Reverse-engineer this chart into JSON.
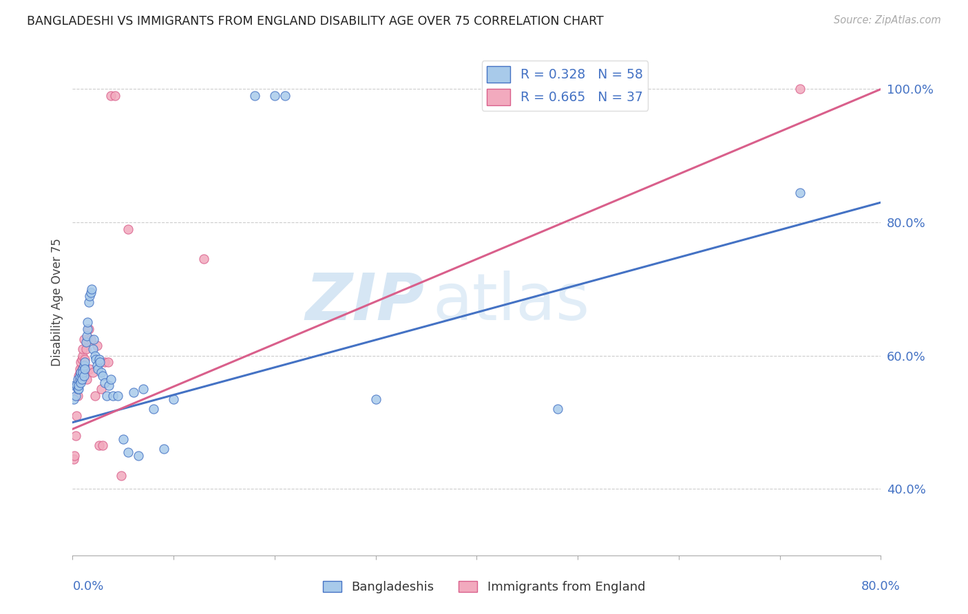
{
  "title": "BANGLADESHI VS IMMIGRANTS FROM ENGLAND DISABILITY AGE OVER 75 CORRELATION CHART",
  "source": "Source: ZipAtlas.com",
  "ylabel": "Disability Age Over 75",
  "ytick_labels": [
    "40.0%",
    "60.0%",
    "80.0%",
    "100.0%"
  ],
  "legend_blue_r": "R = 0.328",
  "legend_blue_n": "N = 58",
  "legend_pink_r": "R = 0.665",
  "legend_pink_n": "N = 37",
  "color_blue": "#A8CAEA",
  "color_pink": "#F2AABE",
  "color_line_blue": "#4472C4",
  "color_line_pink": "#D95F8B",
  "color_text_blue": "#4472C4",
  "watermark_zip": "ZIP",
  "watermark_atlas": "atlas",
  "blue_line_x0": 0.0,
  "blue_line_y0": 0.5,
  "blue_line_x1": 0.8,
  "blue_line_y1": 0.83,
  "pink_line_x0": 0.0,
  "pink_line_y0": 0.49,
  "pink_line_x1": 0.8,
  "pink_line_y1": 1.0,
  "xmin": 0.0,
  "xmax": 0.8,
  "ymin": 0.3,
  "ymax": 1.06,
  "blue_x": [
    0.001,
    0.002,
    0.003,
    0.004,
    0.005,
    0.005,
    0.006,
    0.006,
    0.007,
    0.007,
    0.008,
    0.008,
    0.009,
    0.009,
    0.01,
    0.01,
    0.011,
    0.011,
    0.012,
    0.012,
    0.013,
    0.014,
    0.015,
    0.015,
    0.016,
    0.017,
    0.018,
    0.019,
    0.02,
    0.021,
    0.022,
    0.023,
    0.024,
    0.025,
    0.026,
    0.027,
    0.028,
    0.03,
    0.032,
    0.034,
    0.036,
    0.038,
    0.04,
    0.045,
    0.05,
    0.055,
    0.06,
    0.065,
    0.07,
    0.08,
    0.09,
    0.1,
    0.18,
    0.2,
    0.21,
    0.3,
    0.48,
    0.72
  ],
  "blue_y": [
    0.535,
    0.555,
    0.54,
    0.555,
    0.55,
    0.565,
    0.55,
    0.555,
    0.565,
    0.57,
    0.56,
    0.575,
    0.57,
    0.565,
    0.58,
    0.575,
    0.585,
    0.57,
    0.59,
    0.58,
    0.62,
    0.63,
    0.64,
    0.65,
    0.68,
    0.69,
    0.695,
    0.7,
    0.61,
    0.625,
    0.6,
    0.595,
    0.585,
    0.58,
    0.595,
    0.59,
    0.575,
    0.57,
    0.56,
    0.54,
    0.555,
    0.565,
    0.54,
    0.54,
    0.475,
    0.455,
    0.545,
    0.45,
    0.55,
    0.52,
    0.46,
    0.535,
    0.99,
    0.99,
    0.99,
    0.535,
    0.52,
    0.845
  ],
  "pink_x": [
    0.001,
    0.002,
    0.003,
    0.004,
    0.005,
    0.005,
    0.006,
    0.006,
    0.007,
    0.007,
    0.008,
    0.009,
    0.009,
    0.01,
    0.01,
    0.011,
    0.012,
    0.013,
    0.014,
    0.015,
    0.016,
    0.017,
    0.018,
    0.02,
    0.022,
    0.024,
    0.026,
    0.028,
    0.03,
    0.032,
    0.035,
    0.038,
    0.042,
    0.048,
    0.055,
    0.13,
    0.72
  ],
  "pink_y": [
    0.445,
    0.45,
    0.48,
    0.51,
    0.54,
    0.56,
    0.56,
    0.57,
    0.575,
    0.58,
    0.59,
    0.595,
    0.58,
    0.6,
    0.61,
    0.625,
    0.595,
    0.61,
    0.565,
    0.625,
    0.64,
    0.58,
    0.625,
    0.575,
    0.54,
    0.615,
    0.465,
    0.55,
    0.465,
    0.59,
    0.59,
    0.99,
    0.99,
    0.42,
    0.79,
    0.745,
    1.0
  ]
}
